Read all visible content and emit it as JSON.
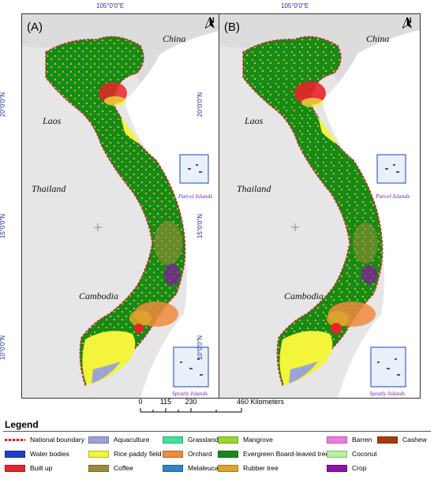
{
  "panels": [
    {
      "label": "(A)"
    },
    {
      "label": "(B)"
    }
  ],
  "countries": {
    "china": "China",
    "laos": "Laos",
    "thailand": "Thailand",
    "cambodia": "Cambodia"
  },
  "islands": {
    "parcel": "Parcel Islands",
    "spratly": "Spratly Islands"
  },
  "north_arrow": "N",
  "coordinates": {
    "longitude": "105°0'0\"E",
    "lat20": "20°0'0\"N",
    "lat15": "15°0'0\"N",
    "lat10": "10°0'0\"N"
  },
  "scale_bar": {
    "ticks": [
      "0",
      "115",
      "230",
      "460 Kilometers"
    ],
    "tick_values": [
      0,
      115,
      230,
      460
    ]
  },
  "legend": {
    "title": "Legend",
    "items": [
      {
        "label": "National boundary",
        "color": "#e0202b",
        "kind": "boundary"
      },
      {
        "label": "Water bodies",
        "color": "#1f3fc8"
      },
      {
        "label": "Built up",
        "color": "#e8232a"
      },
      {
        "label": "Aquaculture",
        "color": "#9ba4d6"
      },
      {
        "label": "Rice paddy field",
        "color": "#f4f43a"
      },
      {
        "label": "Coffee",
        "color": "#9c8a3c"
      },
      {
        "label": "Grassland",
        "color": "#3ce39a"
      },
      {
        "label": "Orchard",
        "color": "#f08a3c"
      },
      {
        "label": "Melaleuca",
        "color": "#2a86c8"
      },
      {
        "label": "Mangrove",
        "color": "#9bd62c"
      },
      {
        "label": "Evergreen Board-leaved tree",
        "color": "#168a16"
      },
      {
        "label": "Rubber tree",
        "color": "#e0a42a"
      },
      {
        "label": "Barren",
        "color": "#f27adc"
      },
      {
        "label": "Coconut",
        "color": "#b4f49c"
      },
      {
        "label": "Crop",
        "color": "#8a12a8"
      },
      {
        "label": "Cashew",
        "color": "#a83a0c"
      }
    ]
  }
}
